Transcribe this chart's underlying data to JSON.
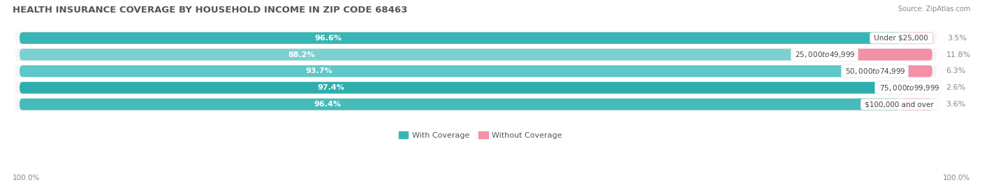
{
  "title": "HEALTH INSURANCE COVERAGE BY HOUSEHOLD INCOME IN ZIP CODE 68463",
  "source": "Source: ZipAtlas.com",
  "categories": [
    "Under $25,000",
    "$25,000 to $49,999",
    "$50,000 to $74,999",
    "$75,000 to $99,999",
    "$100,000 and over"
  ],
  "with_coverage": [
    96.6,
    88.2,
    93.7,
    97.4,
    96.4
  ],
  "without_coverage": [
    3.5,
    11.8,
    6.3,
    2.6,
    3.6
  ],
  "colors_with": [
    "#3ab5b5",
    "#7dd0d0",
    "#5ec7c7",
    "#2eadad",
    "#47baba"
  ],
  "color_without": "#f490a8",
  "color_bar_bg": "#e8e8e8",
  "color_row_bg": "#f5f5f5",
  "figsize": [
    14.06,
    2.69
  ],
  "dpi": 100,
  "x_left_label": "100.0%",
  "x_right_label": "100.0%",
  "legend_with": "With Coverage",
  "legend_without": "Without Coverage",
  "title_fontsize": 9.5,
  "label_fontsize": 8.0,
  "tick_fontsize": 7.5
}
